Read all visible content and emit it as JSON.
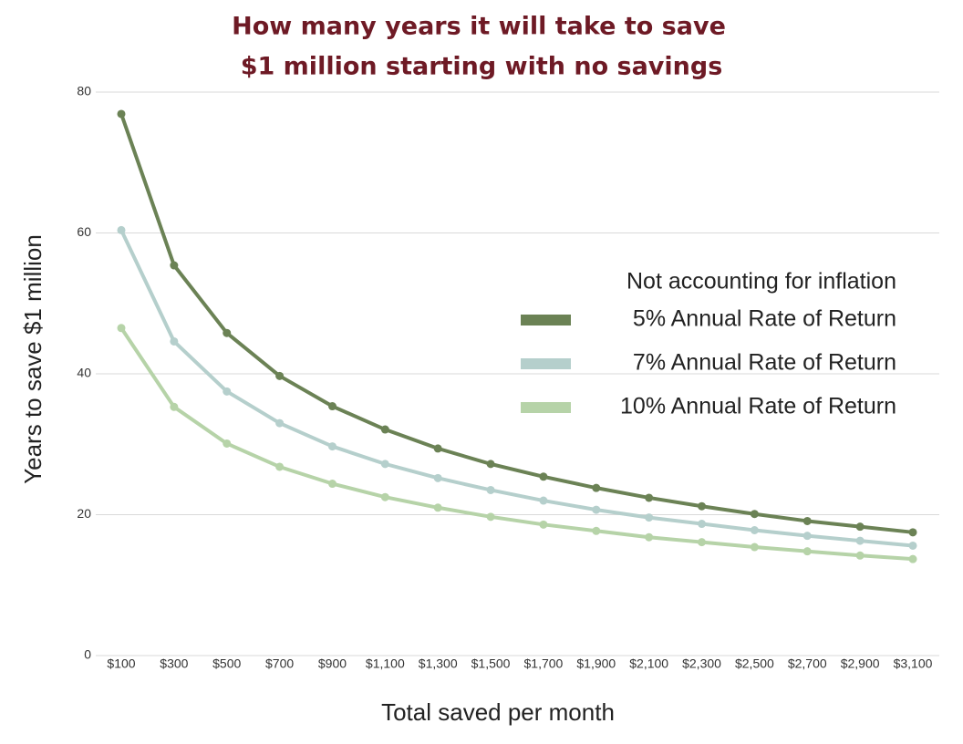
{
  "chart_data": {
    "type": "line",
    "title": [
      "How many years it will take to save",
      "$1 million starting with no savings"
    ],
    "x_label": "Total saved per month",
    "y_label": "Years to save $1 million",
    "legend_title": "Not accounting for inflation",
    "legend_position": "right",
    "categories": [
      "$100",
      "$300",
      "$500",
      "$700",
      "$900",
      "$1,100",
      "$1,300",
      "$1,500",
      "$1,700",
      "$1,900",
      "$2,100",
      "$2,300",
      "$2,500",
      "$2,700",
      "$2,900",
      "$3,100"
    ],
    "series": [
      {
        "name": "5% Annual Rate of Return",
        "color": "#6b8255",
        "values": [
          76.9,
          55.4,
          45.8,
          39.7,
          35.4,
          32.1,
          29.4,
          27.2,
          25.4,
          23.8,
          22.4,
          21.2,
          20.1,
          19.1,
          18.3,
          17.5
        ]
      },
      {
        "name": "7% Annual Rate of Return",
        "color": "#b5cfcc",
        "values": [
          60.4,
          44.6,
          37.5,
          33.0,
          29.7,
          27.2,
          25.2,
          23.5,
          22.0,
          20.7,
          19.6,
          18.7,
          17.8,
          17.0,
          16.3,
          15.6
        ]
      },
      {
        "name": "10% Annual Rate of Return",
        "color": "#b6d3a8",
        "values": [
          46.5,
          35.3,
          30.1,
          26.8,
          24.4,
          22.5,
          21.0,
          19.7,
          18.6,
          17.7,
          16.8,
          16.1,
          15.4,
          14.8,
          14.2,
          13.7
        ]
      }
    ],
    "ylim": [
      0,
      80
    ],
    "yticks": [
      0,
      20,
      40,
      60,
      80
    ],
    "grid": true
  }
}
